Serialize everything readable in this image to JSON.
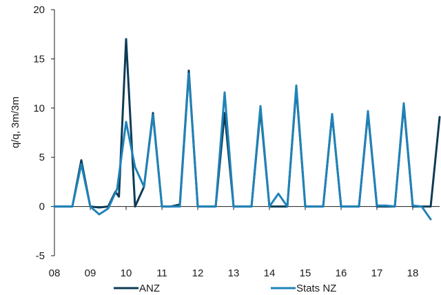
{
  "chart_data": {
    "type": "line",
    "ylabel": "q/q, 3m/3m",
    "xlabel": "",
    "ylim": [
      -5,
      20
    ],
    "yticks": [
      -5,
      0,
      5,
      10,
      15,
      20
    ],
    "x_tick_labels": [
      "08",
      "09",
      "10",
      "11",
      "12",
      "13",
      "14",
      "15",
      "16",
      "17",
      "18"
    ],
    "xlim": [
      2008,
      2018.75
    ],
    "grid": false,
    "legend_position": "bottom",
    "series": [
      {
        "name": "ANZ",
        "color": "#0d3b56",
        "points": [
          [
            2008.0,
            0.0
          ],
          [
            2008.25,
            0.0
          ],
          [
            2008.5,
            0.0
          ],
          [
            2008.75,
            4.7
          ],
          [
            2009.0,
            0.0
          ],
          [
            2009.25,
            -0.1
          ],
          [
            2009.5,
            0.0
          ],
          [
            2009.7,
            1.5
          ],
          [
            2009.8,
            1.0
          ],
          [
            2010.0,
            17.0
          ],
          [
            2010.25,
            0.0
          ],
          [
            2010.5,
            2.0
          ],
          [
            2010.75,
            9.5
          ],
          [
            2011.0,
            0.0
          ],
          [
            2011.25,
            0.0
          ],
          [
            2011.5,
            0.2
          ],
          [
            2011.75,
            13.8
          ],
          [
            2012.0,
            0.0
          ],
          [
            2012.25,
            0.0
          ],
          [
            2012.5,
            0.0
          ],
          [
            2012.75,
            9.5
          ],
          [
            2013.0,
            0.0
          ],
          [
            2013.25,
            0.0
          ],
          [
            2013.5,
            0.0
          ],
          [
            2013.75,
            9.8
          ],
          [
            2014.0,
            0.0
          ],
          [
            2014.25,
            0.0
          ],
          [
            2014.5,
            0.0
          ],
          [
            2014.75,
            12.0
          ],
          [
            2015.0,
            0.0
          ],
          [
            2015.25,
            0.0
          ],
          [
            2015.5,
            0.0
          ],
          [
            2015.75,
            9.3
          ],
          [
            2016.0,
            0.0
          ],
          [
            2016.25,
            0.0
          ],
          [
            2016.5,
            0.0
          ],
          [
            2016.75,
            9.5
          ],
          [
            2017.0,
            0.0
          ],
          [
            2017.25,
            0.0
          ],
          [
            2017.5,
            0.0
          ],
          [
            2017.75,
            10.3
          ],
          [
            2018.0,
            0.0
          ],
          [
            2018.25,
            0.0
          ],
          [
            2018.5,
            0.0
          ],
          [
            2018.75,
            9.1
          ]
        ]
      },
      {
        "name": "Stats NZ",
        "color": "#1f83b8",
        "points": [
          [
            2008.0,
            0.0
          ],
          [
            2008.25,
            0.0
          ],
          [
            2008.5,
            0.0
          ],
          [
            2008.75,
            4.3
          ],
          [
            2009.0,
            0.0
          ],
          [
            2009.25,
            -0.8
          ],
          [
            2009.5,
            -0.2
          ],
          [
            2009.75,
            1.8
          ],
          [
            2010.0,
            8.6
          ],
          [
            2010.25,
            4.0
          ],
          [
            2010.5,
            2.0
          ],
          [
            2010.75,
            9.3
          ],
          [
            2011.0,
            0.0
          ],
          [
            2011.25,
            0.0
          ],
          [
            2011.5,
            0.0
          ],
          [
            2011.75,
            13.5
          ],
          [
            2012.0,
            0.0
          ],
          [
            2012.25,
            0.0
          ],
          [
            2012.5,
            0.0
          ],
          [
            2012.75,
            11.6
          ],
          [
            2013.0,
            0.0
          ],
          [
            2013.25,
            0.0
          ],
          [
            2013.5,
            0.0
          ],
          [
            2013.75,
            10.2
          ],
          [
            2014.0,
            0.0
          ],
          [
            2014.25,
            1.3
          ],
          [
            2014.5,
            0.0
          ],
          [
            2014.75,
            12.3
          ],
          [
            2015.0,
            0.0
          ],
          [
            2015.25,
            0.0
          ],
          [
            2015.5,
            0.0
          ],
          [
            2015.75,
            9.4
          ],
          [
            2016.0,
            0.0
          ],
          [
            2016.25,
            0.0
          ],
          [
            2016.5,
            0.0
          ],
          [
            2016.75,
            9.7
          ],
          [
            2017.0,
            0.1
          ],
          [
            2017.25,
            0.1
          ],
          [
            2017.5,
            0.0
          ],
          [
            2017.75,
            10.5
          ],
          [
            2018.0,
            0.1
          ],
          [
            2018.25,
            0.0
          ],
          [
            2018.5,
            -1.3
          ]
        ]
      }
    ]
  }
}
